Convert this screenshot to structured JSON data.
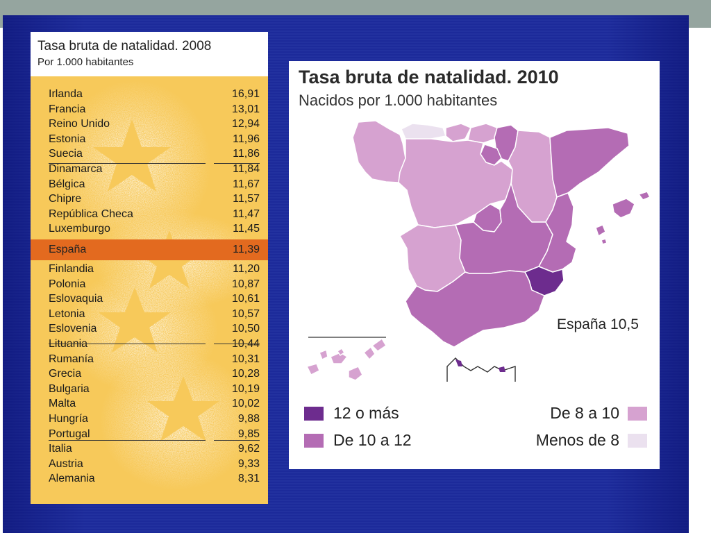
{
  "colors": {
    "cat_12_plus": "#6d2c8e",
    "cat_10_12": "#b46cb4",
    "cat_8_10": "#d6a2d0",
    "cat_below_8": "#ebe1ef",
    "highlight_row": "#e36a1f",
    "table_bg": "#f7c95a"
  },
  "chart_data": [
    {
      "type": "table",
      "title": "Tasa bruta de natalidad. 2008",
      "subtitle": "Por 1.000 habitantes",
      "highlight": "España",
      "rows": [
        {
          "country": "Irlanda",
          "value": "16,91"
        },
        {
          "country": "Francia",
          "value": "13,01"
        },
        {
          "country": "Reino Unido",
          "value": "12,94"
        },
        {
          "country": "Estonia",
          "value": "11,96"
        },
        {
          "country": "Suecia",
          "value": "11,86"
        },
        {
          "country": "Dinamarca",
          "value": "11,84"
        },
        {
          "country": "Bélgica",
          "value": "11,67"
        },
        {
          "country": "Chipre",
          "value": "11,57"
        },
        {
          "country": "República Checa",
          "value": "11,47"
        },
        {
          "country": "Luxemburgo",
          "value": "11,45"
        },
        {
          "country": "España",
          "value": "11,39"
        },
        {
          "country": "Finlandia",
          "value": "11,20"
        },
        {
          "country": "Polonia",
          "value": "10,87"
        },
        {
          "country": "Eslovaquia",
          "value": "10,61"
        },
        {
          "country": "Letonia",
          "value": "10,57"
        },
        {
          "country": "Eslovenia",
          "value": "10,50"
        },
        {
          "country": "Lituania",
          "value": "10,44"
        },
        {
          "country": "Rumanía",
          "value": "10,31"
        },
        {
          "country": "Grecia",
          "value": "10,28"
        },
        {
          "country": "Bulgaria",
          "value": "10,19"
        },
        {
          "country": "Malta",
          "value": "10,02"
        },
        {
          "country": "Hungría",
          "value": "9,88"
        },
        {
          "country": "Portugal",
          "value": "9,85"
        },
        {
          "country": "Italia",
          "value": "9,62"
        },
        {
          "country": "Austria",
          "value": "9,33"
        },
        {
          "country": "Alemania",
          "value": "8,31"
        }
      ]
    },
    {
      "type": "choropleth",
      "title": "Tasa bruta de natalidad. 2010",
      "subtitle": "Nacidos por 1.000 habitantes",
      "annotation": "España 10,5",
      "legend": [
        {
          "label": "12 o más",
          "color": "#6d2c8e"
        },
        {
          "label": "De 10 a 12",
          "color": "#b46cb4"
        },
        {
          "label": "De 8 a 10",
          "color": "#d6a2d0"
        },
        {
          "label": "Menos de 8",
          "color": "#ebe1ef"
        }
      ]
    }
  ]
}
